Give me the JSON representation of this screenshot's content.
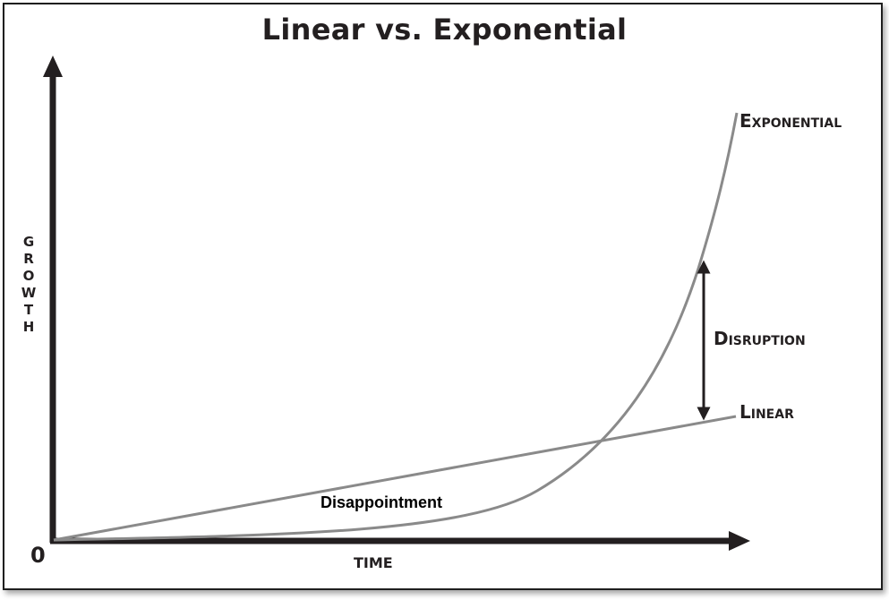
{
  "title": "Linear vs. Exponential",
  "axes": {
    "y_label": "GROWTH",
    "x_label": "TIME",
    "origin_label": "0"
  },
  "curves": {
    "exponential_label": "Exponential",
    "linear_label": "Linear"
  },
  "annotations": {
    "disruption_label": "Disruption",
    "disappointment_label": "Disappointment"
  },
  "colors": {
    "axis": "#231f20",
    "curve": "#8a8a8a",
    "text": "#231f20"
  }
}
